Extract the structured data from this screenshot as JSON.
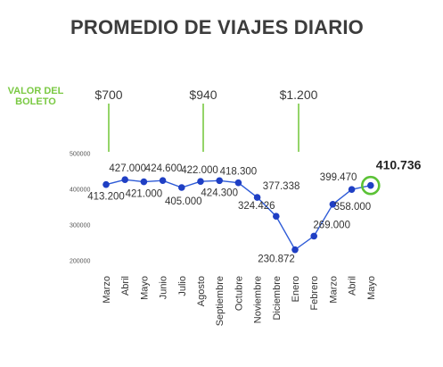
{
  "title": "PROMEDIO DE VIAJES DIARIO",
  "ticket_label_line1": "VALOR DEL",
  "ticket_label_line2": "BOLETO",
  "colors": {
    "line": "#2e5bd7",
    "point": "#1f3fc4",
    "price_marker": "#7ac943",
    "highlight_ring": "#5bc236"
  },
  "chart_data": {
    "type": "line",
    "categories": [
      "Marzo",
      "Abril",
      "Mayo",
      "Junio",
      "Julio",
      "Agosto",
      "Septiembre",
      "Octubre",
      "Noviembre",
      "Diciembre",
      "Enero",
      "Febrero",
      "Marzo",
      "Abril",
      "Mayo"
    ],
    "values": [
      413200,
      427000,
      421000,
      424600,
      405000,
      422000,
      424300,
      418300,
      377338,
      324426,
      230872,
      269000,
      358000,
      399470,
      410736
    ],
    "value_labels": [
      "413.200",
      "427.000",
      "421.000",
      "424.600",
      "405.000",
      "422.000",
      "424.300",
      "418.300",
      "377.338",
      "324.426",
      "230.872",
      "269.000",
      "358.000",
      "399.470",
      "410.736"
    ],
    "y_ticks": [
      500000,
      400000,
      300000,
      200000
    ],
    "y_tick_labels": [
      "500000",
      "400000",
      "300000",
      "200000"
    ],
    "ylim": [
      200000,
      500000
    ],
    "grid": false,
    "highlight_last": true,
    "price_markers": [
      {
        "label": "$700",
        "at_category_index": 0
      },
      {
        "label": "$940",
        "at_category_index": 5
      },
      {
        "label": "$1.200",
        "at_category_index": 10
      }
    ]
  }
}
